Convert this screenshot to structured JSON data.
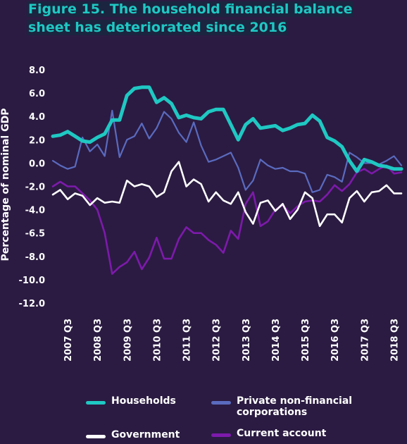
{
  "title_line1": "Figure 15. The household financial balance",
  "title_line2": "sheet has deteriorated since 2016",
  "chart_data": {
    "type": "line",
    "ylabel": "Percentage of nominal GDP",
    "xlabel": "",
    "yticks": [
      "8.0",
      "6.0",
      "4.0",
      "2.0",
      "0.0",
      "-2.0",
      "-4.0",
      "-6.5",
      "-8.0",
      "-10.0",
      "-12.0"
    ],
    "xticks": [
      "2007 Q3",
      "2008 Q3",
      "2009 Q3",
      "2010 Q3",
      "2011 Q3",
      "2012 Q3",
      "2013 Q3",
      "2014 Q3",
      "2015 Q3",
      "2016 Q3",
      "2017 Q3",
      "2018 Q3"
    ],
    "ylim": [
      -12,
      8
    ],
    "x_range": [
      "2007 Q1",
      "2018 Q3"
    ],
    "grid": false,
    "legend_position": "bottom",
    "series": [
      {
        "name": "Households",
        "color": "#1fc8c3",
        "values": [
          2.3,
          2.4,
          2.7,
          2.3,
          1.9,
          1.8,
          2.2,
          2.5,
          3.7,
          3.7,
          5.8,
          6.4,
          6.5,
          6.5,
          5.2,
          5.6,
          5.1,
          3.9,
          4.1,
          3.9,
          3.8,
          4.4,
          4.6,
          4.6,
          3.3,
          2.0,
          3.3,
          3.8,
          3.0,
          3.1,
          3.2,
          2.8,
          3.0,
          3.3,
          3.4,
          4.1,
          3.6,
          2.2,
          1.9,
          1.4,
          0.2,
          -0.7,
          0.3,
          0.1,
          -0.2,
          -0.3,
          -0.5,
          -0.5
        ]
      },
      {
        "name": "Private non-financial corporations",
        "color": "#5a6bbf",
        "values": [
          0.2,
          -0.2,
          -0.5,
          -0.3,
          2.2,
          1.0,
          1.6,
          0.6,
          4.5,
          0.5,
          2.0,
          2.3,
          3.4,
          2.1,
          3.0,
          4.4,
          3.8,
          2.6,
          1.8,
          3.5,
          1.5,
          0.1,
          0.3,
          0.6,
          0.9,
          -0.4,
          -2.3,
          -1.5,
          0.3,
          -0.2,
          -0.5,
          -0.4,
          -0.7,
          -0.7,
          -0.9,
          -2.5,
          -2.3,
          -1.0,
          -1.2,
          -1.6,
          0.9,
          0.5,
          0.0,
          0.0,
          -0.1,
          0.2,
          0.6,
          -0.2
        ]
      },
      {
        "name": "Government",
        "color": "#ffffff",
        "values": [
          -2.7,
          -2.3,
          -3.1,
          -2.6,
          -2.8,
          -3.6,
          -3.0,
          -3.4,
          -3.3,
          -3.4,
          -1.5,
          -2.0,
          -1.8,
          -2.0,
          -2.9,
          -2.5,
          -0.7,
          0.1,
          -2.0,
          -1.4,
          -1.8,
          -3.3,
          -2.5,
          -3.2,
          -3.5,
          -2.5,
          -4.2,
          -5.2,
          -3.4,
          -3.2,
          -4.1,
          -3.5,
          -4.8,
          -4.0,
          -2.5,
          -3.0,
          -5.4,
          -4.4,
          -4.4,
          -5.1,
          -3.0,
          -2.4,
          -3.3,
          -2.5,
          -2.4,
          -1.9,
          -2.6,
          -2.6
        ]
      },
      {
        "name": "Current account",
        "color": "#7d1aab",
        "values": [
          -2.0,
          -1.6,
          -2.0,
          -2.0,
          -2.6,
          -3.2,
          -4.0,
          -6.0,
          -9.5,
          -8.9,
          -8.5,
          -7.6,
          -9.1,
          -8.1,
          -6.4,
          -8.2,
          -8.2,
          -6.5,
          -5.5,
          -6.0,
          -6.0,
          -6.6,
          -7.0,
          -7.7,
          -5.8,
          -6.5,
          -3.5,
          -2.5,
          -5.4,
          -5.0,
          -4.0,
          -3.6,
          -4.3,
          -3.7,
          -3.3,
          -3.2,
          -3.3,
          -2.7,
          -1.9,
          -2.4,
          -1.8,
          -0.8,
          -0.5,
          -0.9,
          -0.5,
          -0.2,
          -0.9,
          -0.8
        ]
      }
    ]
  }
}
